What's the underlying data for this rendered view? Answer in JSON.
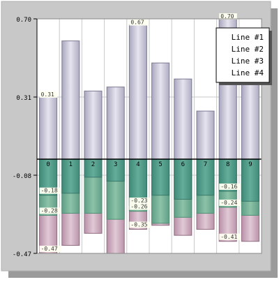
{
  "chart_data": {
    "type": "bar",
    "title": "",
    "xlabel": "",
    "ylabel": "",
    "ylim": [
      -0.47,
      0.7
    ],
    "y_ticks": [
      "0.70",
      "0.31",
      "-0.08",
      "-0.47"
    ],
    "categories": [
      "0",
      "1",
      "2",
      "3",
      "4",
      "5",
      "6",
      "7",
      "8",
      "9"
    ],
    "grid": true,
    "legend_position": "top-right",
    "series": [
      {
        "name": "Line #1",
        "values": [
          0.31,
          0.59,
          0.34,
          0.36,
          0.67,
          0.48,
          0.4,
          0.24,
          0.7,
          0.49
        ],
        "value_labels": [
          "0.31",
          "",
          "",
          "",
          "0.67",
          "",
          "",
          "",
          "0.70",
          ""
        ],
        "color": "#c8c6d6"
      },
      {
        "name": "Line #2",
        "values": [
          -0.18,
          -0.17,
          -0.09,
          -0.11,
          -0.23,
          -0.18,
          -0.2,
          -0.18,
          -0.16,
          -0.21
        ],
        "value_labels": [
          "-0.18",
          "",
          "",
          "",
          "-0.23",
          "",
          "",
          "",
          "-0.16",
          ""
        ],
        "color": "#4b9a8a"
      },
      {
        "name": "Line #3",
        "values": [
          -0.28,
          -0.27,
          -0.27,
          -0.3,
          -0.26,
          -0.32,
          -0.29,
          -0.27,
          -0.24,
          -0.28
        ],
        "value_labels": [
          "-0.28",
          "",
          "",
          "",
          "-0.26",
          "",
          "",
          "",
          "-0.24",
          ""
        ],
        "color": "#7fb39a"
      },
      {
        "name": "Line #4",
        "values": [
          -0.47,
          -0.43,
          -0.37,
          -0.47,
          -0.35,
          -0.33,
          -0.38,
          -0.35,
          -0.41,
          -0.41
        ],
        "value_labels": [
          "-0.47",
          "",
          "",
          "",
          "-0.35",
          "",
          "",
          "",
          "-0.41",
          ""
        ],
        "color": "#c9b0c0"
      }
    ],
    "colors": {
      "frame_shadow": "#c8c8c8",
      "plot_background": "#ffffff",
      "grid": "#c8c8c8",
      "label_background": "#fffff0"
    }
  }
}
